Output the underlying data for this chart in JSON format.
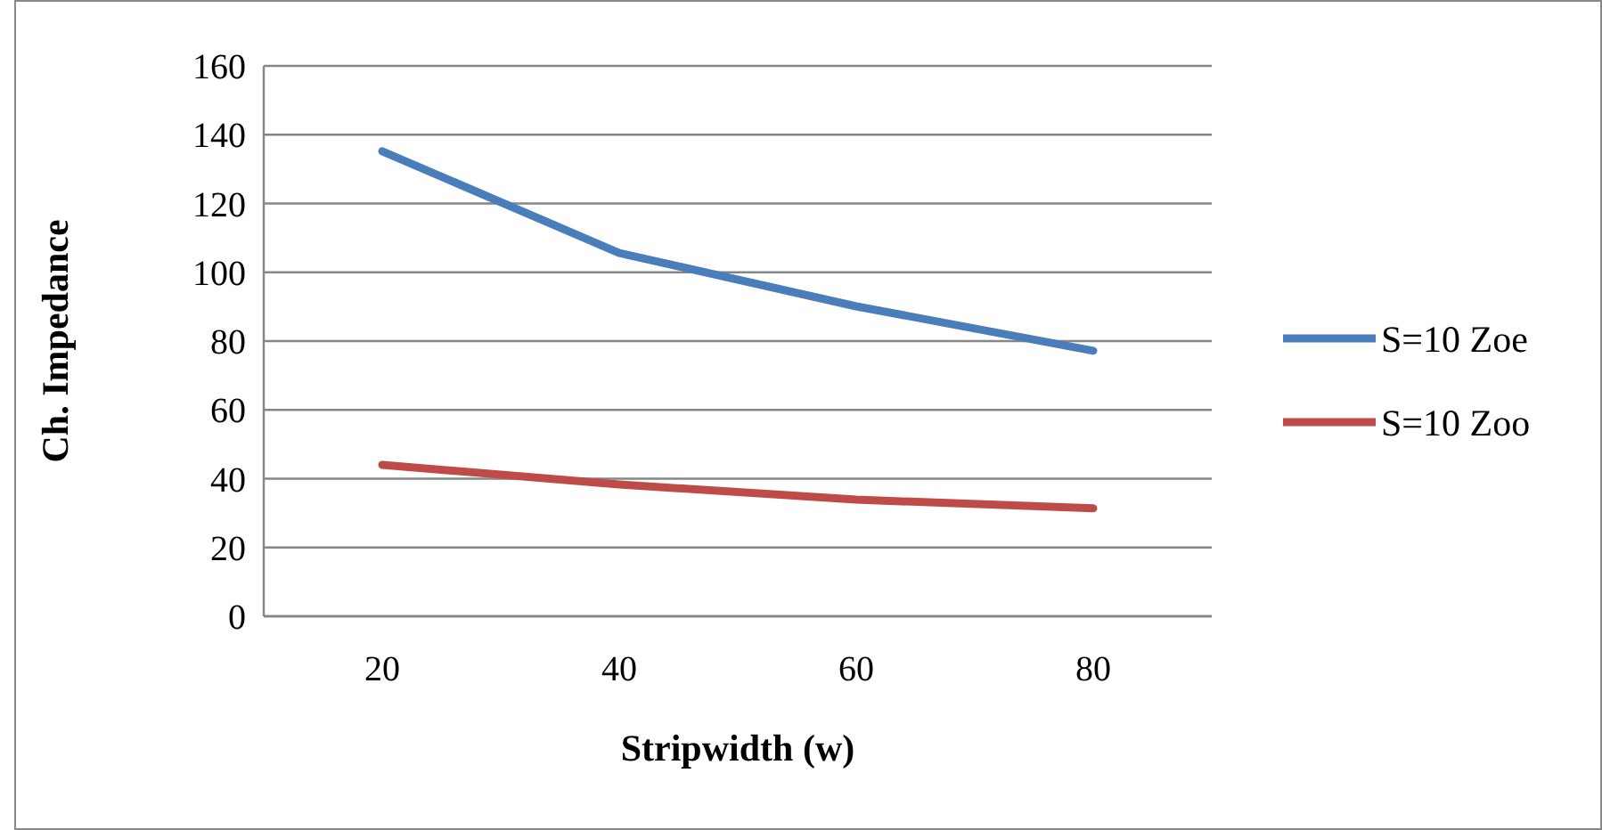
{
  "chart_data": {
    "type": "line",
    "xlabel": "Stripwidth (w)",
    "ylabel": "Ch. Impedance",
    "categories": [
      "20",
      "40",
      "60",
      "80"
    ],
    "series": [
      {
        "name": "S=10 Zoe",
        "color": "#4a7ebb",
        "values": [
          135.2,
          105.6,
          90.1,
          77.2
        ]
      },
      {
        "name": "S=10 Zoo",
        "color": "#be4b48",
        "values": [
          44.0,
          38.3,
          33.9,
          31.4
        ]
      }
    ],
    "ylim": [
      0,
      160
    ],
    "yticks": [
      0,
      20,
      40,
      60,
      80,
      100,
      120,
      140,
      160
    ],
    "grid": "y",
    "legend": "right",
    "marker": "none",
    "line_style": "solid"
  }
}
